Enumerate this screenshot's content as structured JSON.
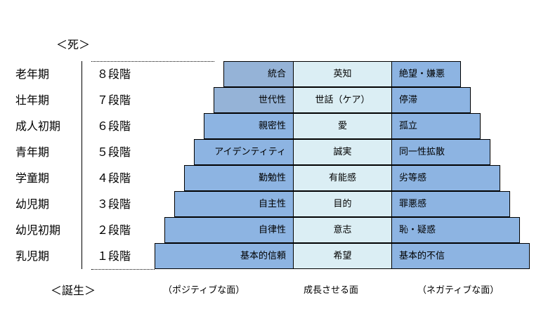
{
  "death_label": "＜死＞",
  "birth_label": "＜誕生＞",
  "colors": {
    "positive_upper": "#95b3d7",
    "positive": "#8db4e2",
    "middle": "#dbeef4",
    "negative": "#8db4e2"
  },
  "stages": [
    {
      "period": "老年期",
      "stage": "８段階",
      "positive": "統合",
      "growth": "英知",
      "negative": "絶望・嫌悪"
    },
    {
      "period": "壮年期",
      "stage": "７段階",
      "positive": "世代性",
      "growth": "世話（ケア）",
      "negative": "停滞"
    },
    {
      "period": "成人初期",
      "stage": "６段階",
      "positive": "親密性",
      "growth": "愛",
      "negative": "孤立"
    },
    {
      "period": "青年期",
      "stage": "５段階",
      "positive": "アイデンティティ",
      "growth": "誠実",
      "negative": "同一性拡散"
    },
    {
      "period": "学童期",
      "stage": "４段階",
      "positive": "勤勉性",
      "growth": "有能感",
      "negative": "劣等感"
    },
    {
      "period": "幼児期",
      "stage": "３段階",
      "positive": "自主性",
      "growth": "目的",
      "negative": "罪悪感"
    },
    {
      "period": "幼児初期",
      "stage": "２段階",
      "positive": "自律性",
      "growth": "意志",
      "negative": "恥・疑惑"
    },
    {
      "period": "乳児期",
      "stage": "１段階",
      "positive": "基本的信頼",
      "growth": "希望",
      "negative": "基本的不信"
    }
  ],
  "footer": {
    "positive": "（ポジティブな面）",
    "growth": "成長させる面",
    "negative": "（ネガティブな面）"
  }
}
